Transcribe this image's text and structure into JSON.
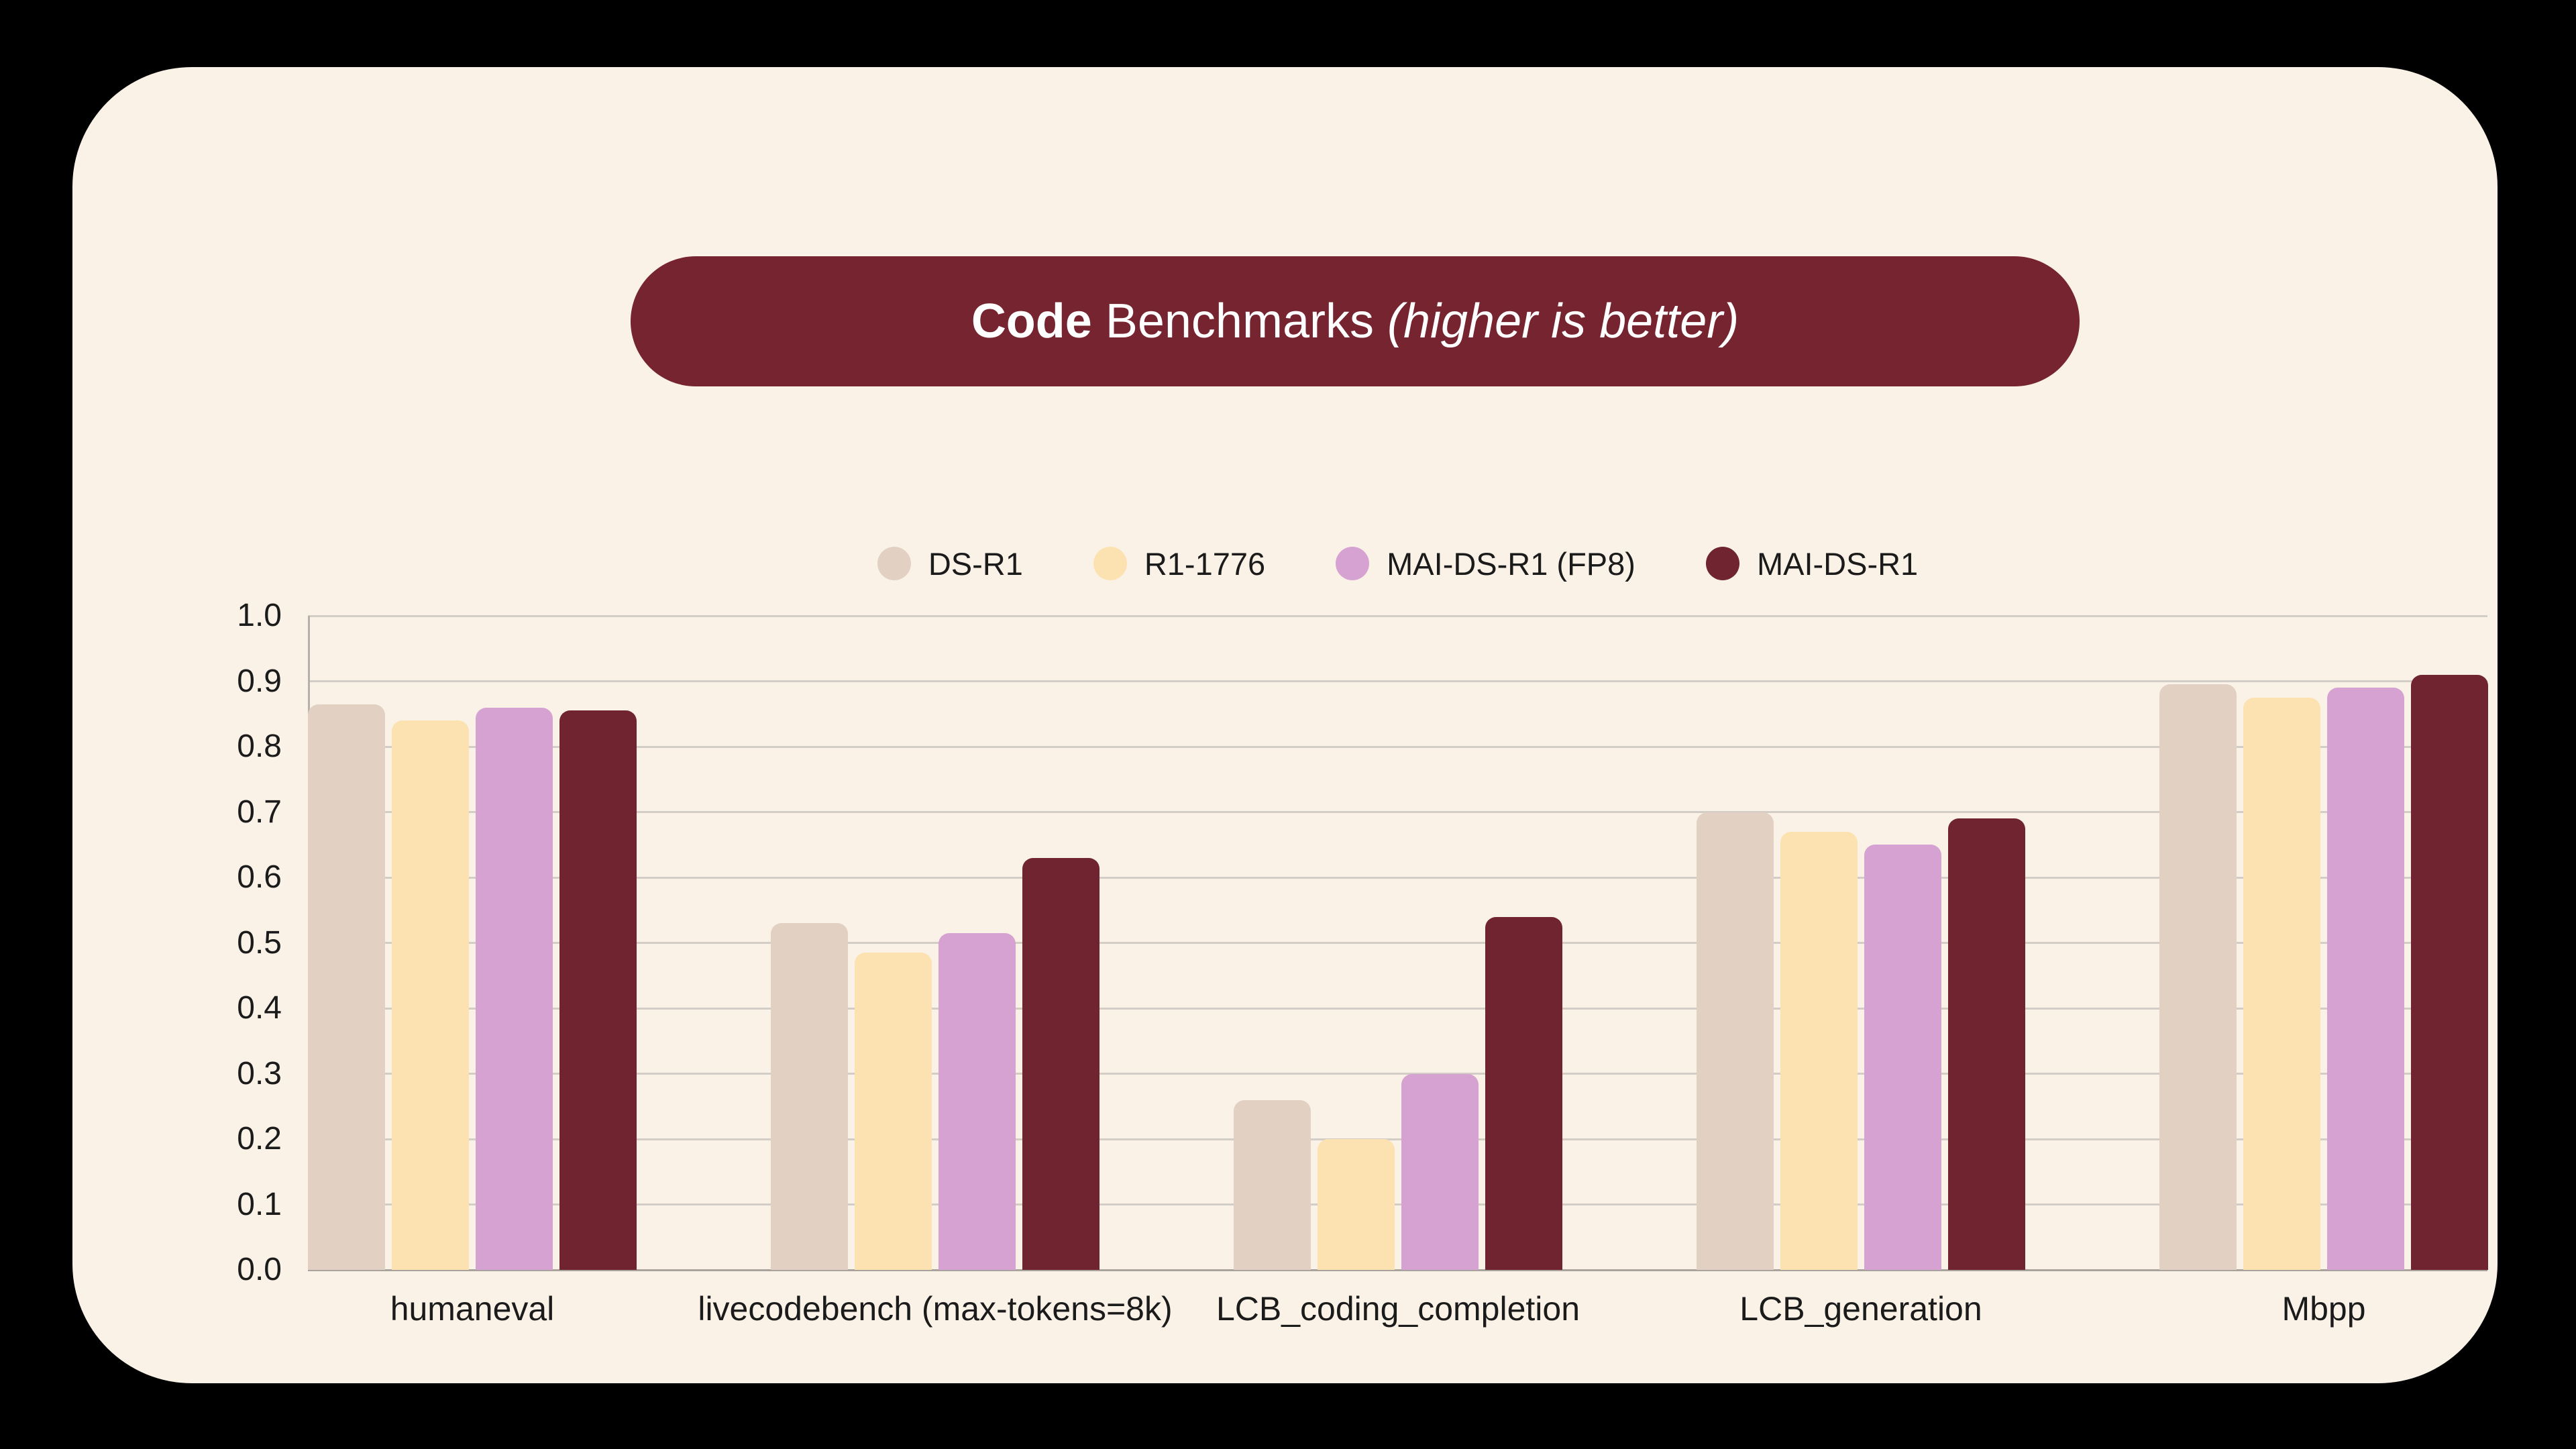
{
  "title": {
    "bold": "Code",
    "regular": "Benchmarks",
    "italic": "(higher is better)"
  },
  "colors": {
    "page_background": "#000000",
    "card_background": "#FAF2E7",
    "banner_background": "#76242F",
    "banner_text": "#FFFFFF",
    "gridline": "#D2CEC7",
    "axis_line": "#A8A49D",
    "label_text": "#1B1B1B"
  },
  "chart_data": {
    "type": "bar",
    "title": "Code Benchmarks (higher is better)",
    "categories": [
      "humaneval",
      "livecodebench (max-tokens=8k)",
      "LCB_coding_completion",
      "LCB_generation",
      "Mbpp"
    ],
    "series": [
      {
        "name": "DS-R1",
        "color": "#E2D1C3",
        "values": [
          0.865,
          0.53,
          0.26,
          0.7,
          0.895
        ]
      },
      {
        "name": "R1-1776",
        "color": "#FDE2B1",
        "values": [
          0.84,
          0.485,
          0.2,
          0.67,
          0.875
        ]
      },
      {
        "name": "MAI-DS-R1 (FP8)",
        "color": "#D6A2D2",
        "values": [
          0.86,
          0.515,
          0.3,
          0.65,
          0.89
        ]
      },
      {
        "name": "MAI-DS-R1",
        "color": "#6F2430",
        "values": [
          0.855,
          0.63,
          0.54,
          0.69,
          0.91
        ]
      }
    ],
    "ylim": [
      0,
      1
    ],
    "ytick_labels": [
      "0.0",
      "0.1",
      "0.2",
      "0.3",
      "0.4",
      "0.5",
      "0.6",
      "0.7",
      "0.8",
      "0.9",
      "1.0"
    ],
    "grid": "horizontal",
    "legend_position": "top-center"
  }
}
